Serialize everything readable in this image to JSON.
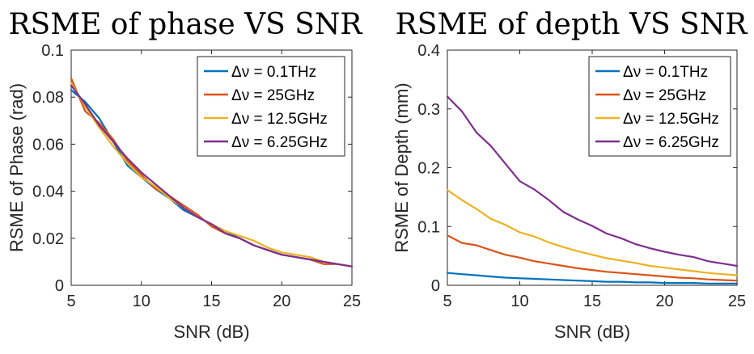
{
  "chart_data": [
    {
      "type": "line",
      "title": "RSME of phase VS SNR",
      "xlabel": "SNR (dB)",
      "ylabel": "RSME of Phase (rad)",
      "xlim": [
        5,
        25
      ],
      "ylim": [
        0,
        0.1
      ],
      "xticks": [
        5,
        10,
        15,
        20,
        25
      ],
      "yticks": [
        0,
        0.02,
        0.04,
        0.06,
        0.08,
        0.1
      ],
      "xtick_labels": [
        "5",
        "10",
        "15",
        "20",
        "25"
      ],
      "ytick_labels": [
        "0",
        "0.02",
        "0.04",
        "0.06",
        "0.08",
        "0.1"
      ],
      "legend_position": "top-right",
      "x": [
        5,
        6,
        7,
        8,
        9,
        10,
        11,
        12,
        13,
        14,
        15,
        16,
        17,
        18,
        19,
        20,
        21,
        22,
        23,
        24,
        25
      ],
      "series": [
        {
          "name": "Δν = 0.1THz",
          "color": "#0072BD",
          "values": [
            0.083,
            0.078,
            0.071,
            0.061,
            0.051,
            0.046,
            0.041,
            0.037,
            0.032,
            0.029,
            0.026,
            0.023,
            0.02,
            0.017,
            0.015,
            0.013,
            0.012,
            0.011,
            0.01,
            0.009,
            0.008
          ]
        },
        {
          "name": "Δν = 25GHz",
          "color": "#D95319",
          "values": [
            0.088,
            0.074,
            0.069,
            0.062,
            0.053,
            0.047,
            0.041,
            0.038,
            0.034,
            0.03,
            0.025,
            0.022,
            0.02,
            0.017,
            0.015,
            0.013,
            0.012,
            0.011,
            0.009,
            0.009,
            0.008
          ]
        },
        {
          "name": "Δν = 12.5GHz",
          "color": "#EDB120",
          "values": [
            0.086,
            0.076,
            0.067,
            0.059,
            0.052,
            0.046,
            0.042,
            0.037,
            0.033,
            0.029,
            0.026,
            0.023,
            0.021,
            0.019,
            0.016,
            0.014,
            0.013,
            0.012,
            0.01,
            0.009,
            0.008
          ]
        },
        {
          "name": "Δν = 6.25GHz",
          "color": "#7E2F8E",
          "values": [
            0.085,
            0.077,
            0.068,
            0.061,
            0.054,
            0.048,
            0.043,
            0.038,
            0.033,
            0.029,
            0.026,
            0.022,
            0.02,
            0.017,
            0.015,
            0.013,
            0.012,
            0.011,
            0.01,
            0.009,
            0.008
          ]
        }
      ]
    },
    {
      "type": "line",
      "title": "RSME of depth VS SNR",
      "xlabel": "SNR (dB)",
      "ylabel": "RSME of Depth (mm)",
      "xlim": [
        5,
        25
      ],
      "ylim": [
        0,
        0.4
      ],
      "xticks": [
        5,
        10,
        15,
        20,
        25
      ],
      "yticks": [
        0,
        0.1,
        0.2,
        0.3,
        0.4
      ],
      "xtick_labels": [
        "5",
        "10",
        "15",
        "20",
        "25"
      ],
      "ytick_labels": [
        "0",
        "0.1",
        "0.2",
        "0.3",
        "0.4"
      ],
      "legend_position": "top-right",
      "x": [
        5,
        6,
        7,
        8,
        9,
        10,
        11,
        12,
        13,
        14,
        15,
        16,
        17,
        18,
        19,
        20,
        21,
        22,
        23,
        24,
        25
      ],
      "series": [
        {
          "name": "Δν = 0.1THz",
          "color": "#0072BD",
          "values": [
            0.021,
            0.019,
            0.017,
            0.015,
            0.013,
            0.012,
            0.011,
            0.01,
            0.009,
            0.008,
            0.007,
            0.006,
            0.006,
            0.005,
            0.005,
            0.004,
            0.004,
            0.004,
            0.003,
            0.003,
            0.003
          ]
        },
        {
          "name": "Δν = 25GHz",
          "color": "#D95319",
          "values": [
            0.085,
            0.072,
            0.068,
            0.06,
            0.052,
            0.047,
            0.041,
            0.037,
            0.033,
            0.029,
            0.026,
            0.023,
            0.021,
            0.019,
            0.017,
            0.015,
            0.013,
            0.012,
            0.01,
            0.009,
            0.008
          ]
        },
        {
          "name": "Δν = 12.5GHz",
          "color": "#EDB120",
          "values": [
            0.162,
            0.145,
            0.13,
            0.113,
            0.103,
            0.09,
            0.083,
            0.073,
            0.065,
            0.058,
            0.052,
            0.046,
            0.042,
            0.038,
            0.033,
            0.03,
            0.027,
            0.024,
            0.021,
            0.019,
            0.017
          ]
        },
        {
          "name": "Δν = 6.25GHz",
          "color": "#7E2F8E",
          "values": [
            0.321,
            0.296,
            0.26,
            0.237,
            0.207,
            0.177,
            0.163,
            0.145,
            0.125,
            0.112,
            0.101,
            0.088,
            0.08,
            0.07,
            0.063,
            0.057,
            0.052,
            0.048,
            0.041,
            0.037,
            0.033
          ]
        }
      ]
    }
  ]
}
